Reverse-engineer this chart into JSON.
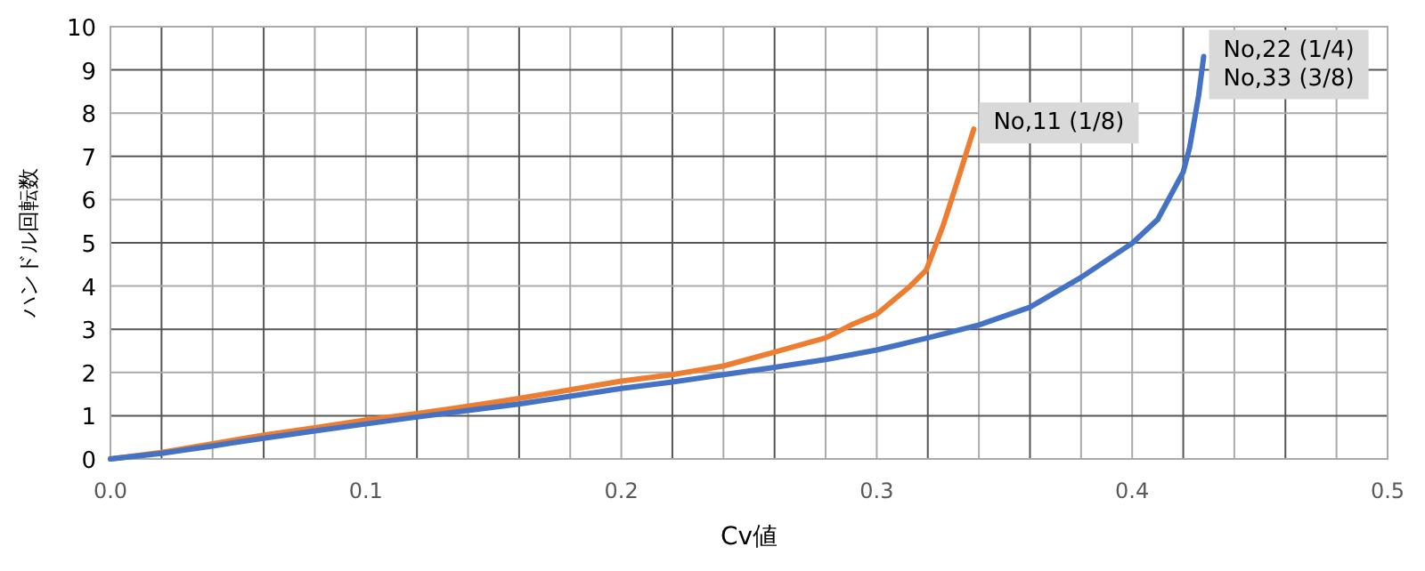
{
  "chart_data": {
    "type": "line",
    "xlabel": "Cv値",
    "ylabel": "ハンドル回転数",
    "xlim": [
      0,
      0.5
    ],
    "xticks": [
      {
        "value": 0,
        "label": "0.0"
      },
      0.1,
      0.2,
      0.3,
      0.4,
      0.5
    ],
    "ylim": [
      0,
      10
    ],
    "yticks": [
      0,
      1,
      2,
      3,
      4,
      5,
      6,
      7,
      8,
      9,
      10
    ],
    "grid": true,
    "marker": "none",
    "line_style": "solid",
    "series": [
      {
        "name": "No,11 (1/8)",
        "color": "#ed7d31",
        "x": [
          0,
          0.02,
          0.04,
          0.06,
          0.08,
          0.1,
          0.12,
          0.14,
          0.16,
          0.18,
          0.2,
          0.22,
          0.24,
          0.26,
          0.28,
          0.29,
          0.3,
          0.3124,
          0.3194,
          0.326,
          0.332,
          0.338
        ],
        "values": [
          0,
          0.15,
          0.35,
          0.55,
          0.72,
          0.9,
          1.05,
          1.22,
          1.4,
          1.6,
          1.8,
          1.95,
          2.15,
          2.47,
          2.8,
          3.1,
          3.35,
          3.96,
          4.37,
          5.4,
          6.5,
          7.63
        ]
      },
      {
        "name": "No,22 (1/4)\nNo,33 (3/8)",
        "color": "#4472c4",
        "x": [
          0,
          0.02,
          0.04,
          0.06,
          0.08,
          0.1,
          0.12,
          0.14,
          0.16,
          0.18,
          0.2,
          0.22,
          0.24,
          0.26,
          0.28,
          0.3,
          0.32,
          0.34,
          0.36,
          0.38,
          0.4,
          0.41,
          0.42,
          0.4225,
          0.426,
          0.428
        ],
        "values": [
          0,
          0.13,
          0.3,
          0.48,
          0.65,
          0.81,
          0.97,
          1.12,
          1.27,
          1.45,
          1.63,
          1.78,
          1.95,
          2.12,
          2.3,
          2.52,
          2.8,
          3.1,
          3.51,
          4.2,
          4.99,
          5.54,
          6.64,
          7.2,
          8.4,
          9.31
        ]
      }
    ]
  }
}
